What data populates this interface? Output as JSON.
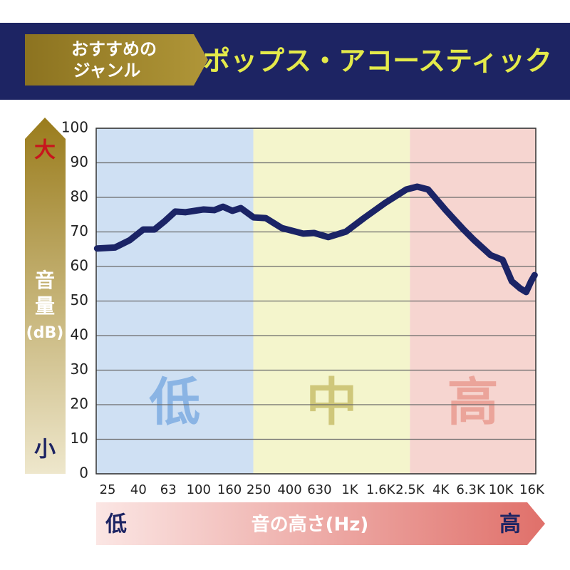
{
  "header": {
    "badge": [
      "おすすめの",
      "ジャンル"
    ],
    "title": "ポップス・アコースティック"
  },
  "chart_data": {
    "type": "line",
    "x": [
      21.3,
      28,
      35,
      43,
      51,
      60,
      70,
      82,
      108,
      127,
      145,
      167,
      190,
      231,
      278,
      356,
      493,
      580,
      720,
      945,
      1240,
      1715,
      2370,
      2790,
      3290,
      4310,
      5650,
      6650,
      8530,
      10260,
      11800,
      13450,
      14680,
      15820,
      16700
    ],
    "series": [
      {
        "color": "#1b2466",
        "values": [
          65.2,
          65.5,
          67.6,
          70.7,
          70.7,
          73.2,
          75.9,
          75.7,
          76.5,
          76.3,
          77.3,
          76.1,
          76.9,
          74.2,
          74.0,
          71.1,
          69.5,
          69.7,
          68.5,
          70.1,
          74.0,
          78.4,
          82.3,
          83.1,
          82.3,
          76.3,
          70.7,
          67.6,
          63.3,
          61.9,
          55.7,
          53.6,
          52.6,
          55.7,
          57.5
        ]
      }
    ],
    "xlim": [
      21,
      17000
    ],
    "log_x": true,
    "xticks": [
      25,
      40,
      63,
      100,
      160,
      250,
      400,
      630,
      {
        "value": 1000,
        "label": "1K"
      },
      {
        "value": 1600,
        "label": "1.6K"
      },
      {
        "value": 2500,
        "label": "2.5K"
      },
      {
        "value": 4000,
        "label": "4K"
      },
      {
        "value": 6300,
        "label": "6.3K"
      },
      {
        "value": 10000,
        "label": "10K"
      },
      {
        "value": 16000,
        "label": "16K"
      }
    ],
    "ylim": [
      0,
      100
    ],
    "yticks": [
      0,
      10,
      20,
      30,
      40,
      50,
      60,
      70,
      80,
      90,
      100
    ],
    "grid": true,
    "bands": [
      {
        "label": "低",
        "from": 21,
        "to": 230,
        "color": "#cfe0f3",
        "label_color": "#8ab4e4"
      },
      {
        "label": "中",
        "from": 230,
        "to": 2500,
        "color": "#f4f5cc",
        "label_color": "#cfc77a"
      },
      {
        "label": "高",
        "from": 2500,
        "to": 17000,
        "color": "#f6d5d0",
        "label_color": "#eba49a"
      }
    ],
    "y_label": [
      "音",
      "量",
      "(dB)"
    ],
    "y_scale_labels": {
      "high": "大",
      "low": "小"
    },
    "x_label": "音の高さ(Hz)",
    "x_scale_labels": {
      "low": "低",
      "high": "高"
    }
  }
}
